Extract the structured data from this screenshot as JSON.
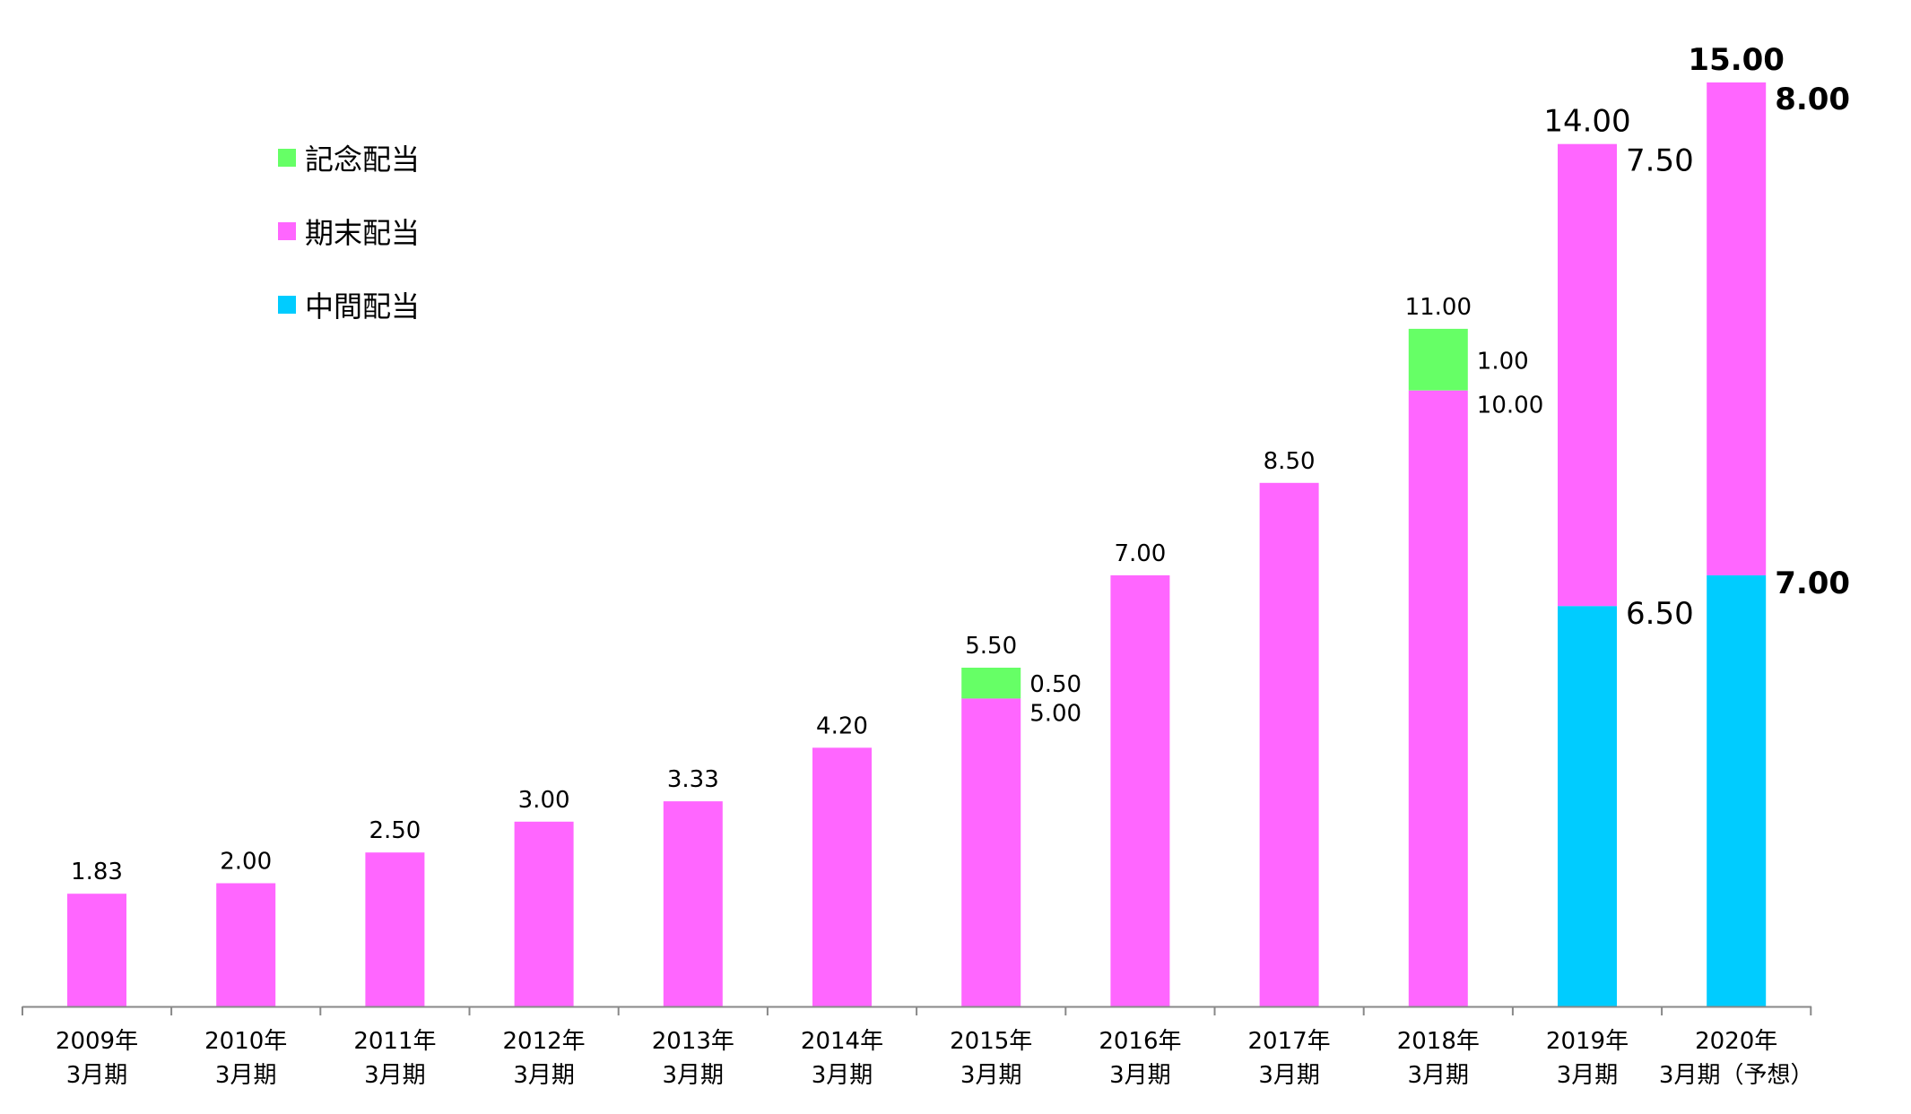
{
  "chart_data": {
    "type": "bar",
    "stacked": true,
    "categories": [
      [
        "2009年",
        "3月期"
      ],
      [
        "2010年",
        "3月期"
      ],
      [
        "2011年",
        "3月期"
      ],
      [
        "2012年",
        "3月期"
      ],
      [
        "2013年",
        "3月期"
      ],
      [
        "2014年",
        "3月期"
      ],
      [
        "2015年",
        "3月期"
      ],
      [
        "2016年",
        "3月期"
      ],
      [
        "2017年",
        "3月期"
      ],
      [
        "2018年",
        "3月期"
      ],
      [
        "2019年",
        "3月期"
      ],
      [
        "2020年",
        "3月期（予想）"
      ]
    ],
    "series": [
      {
        "name": "中間配当",
        "color": "#00CCFF",
        "values": [
          0,
          0,
          0,
          0,
          0,
          0,
          0,
          0,
          0,
          0,
          6.5,
          7.0
        ],
        "labels": [
          null,
          null,
          null,
          null,
          null,
          null,
          null,
          null,
          null,
          null,
          "6.50",
          "7.00"
        ]
      },
      {
        "name": "期末配当",
        "color": "#FF66FF",
        "values": [
          1.83,
          2.0,
          2.5,
          3.0,
          3.33,
          4.2,
          5.0,
          7.0,
          8.5,
          10.0,
          7.5,
          8.0
        ],
        "labels": [
          null,
          null,
          null,
          null,
          null,
          null,
          "5.00",
          null,
          null,
          "10.00",
          "7.50",
          "8.00"
        ]
      },
      {
        "name": "記念配当",
        "color": "#66FF66",
        "values": [
          0,
          0,
          0,
          0,
          0,
          0,
          0.5,
          0,
          0,
          1.0,
          0,
          0
        ],
        "labels": [
          null,
          null,
          null,
          null,
          null,
          null,
          "0.50",
          null,
          null,
          "1.00",
          null,
          null
        ]
      }
    ],
    "totals": [
      "1.83",
      "2.00",
      "2.50",
      "3.00",
      "3.33",
      "4.20",
      "5.50",
      "7.00",
      "8.50",
      "11.00",
      "14.00",
      "15.00"
    ],
    "legend": {
      "position": "top-left",
      "order": [
        "記念配当",
        "期末配当",
        "中間配当"
      ]
    },
    "ylim": [
      0,
      15.0
    ],
    "grid": false,
    "title": "",
    "xlabel": "",
    "ylabel": ""
  }
}
